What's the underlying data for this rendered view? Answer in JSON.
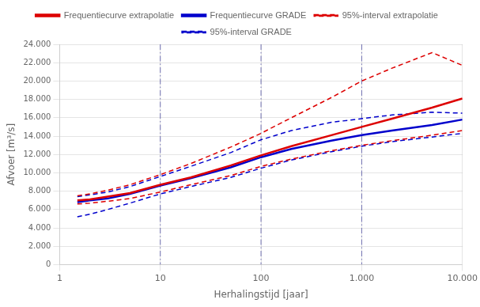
{
  "chart_data": {
    "type": "line",
    "xlabel": "Herhalingstijd [jaar]",
    "ylabel": "Afvoer [m³/s]",
    "log": "x",
    "grid": true,
    "legend": "top",
    "xlim": [
      1,
      10000
    ],
    "xticks": [
      1,
      10,
      100,
      {
        "value": 1000,
        "label": "1.000"
      },
      {
        "value": 10000,
        "label": "10.000"
      }
    ],
    "ylim": [
      0,
      24000
    ],
    "yticks": [
      0,
      {
        "value": 2000,
        "label": "2.000"
      },
      {
        "value": 4000,
        "label": "4.000"
      },
      {
        "value": 6000,
        "label": "6.000"
      },
      {
        "value": 8000,
        "label": "8.000"
      },
      {
        "value": 10000,
        "label": "10.000"
      },
      {
        "value": 12000,
        "label": "12.000"
      },
      {
        "value": 14000,
        "label": "14.000"
      },
      {
        "value": 16000,
        "label": "16.000"
      },
      {
        "value": 18000,
        "label": "18.000"
      },
      {
        "value": 20000,
        "label": "20.000"
      },
      {
        "value": 22000,
        "label": "22.000"
      },
      {
        "value": 24000,
        "label": "24.000"
      }
    ],
    "x": [
      1.5,
      2,
      3,
      5,
      10,
      20,
      50,
      100,
      200,
      500,
      1000,
      2000,
      5000,
      10000
    ],
    "series": [
      {
        "name": "Frequentiecurve extrapolatie",
        "color": "#dd0000",
        "line_style": "solid",
        "values": [
          7000,
          7100,
          7400,
          7800,
          8700,
          9500,
          10800,
          11900,
          12900,
          14100,
          15000,
          15900,
          17100,
          18100
        ]
      },
      {
        "name": "Frequentiecurve GRADE",
        "color": "#0000cc",
        "line_style": "solid",
        "values": [
          6800,
          7000,
          7200,
          7700,
          8600,
          9400,
          10600,
          11700,
          12600,
          13500,
          14100,
          14600,
          15200,
          15800
        ]
      },
      {
        "name": "95%-interval extrapolatie",
        "color": "#dd0000",
        "line_style": "dashed",
        "values": [
          7500,
          7700,
          8100,
          8700,
          9800,
          11000,
          12800,
          14300,
          16000,
          18200,
          20000,
          21400,
          23100,
          21700
        ]
      },
      {
        "name": "95%-interval extrapolatie",
        "color": "#dd0000",
        "line_style": "dashed",
        "values": [
          6600,
          6700,
          6900,
          7200,
          7900,
          8700,
          9700,
          10700,
          11500,
          12400,
          13000,
          13500,
          14100,
          14600
        ]
      },
      {
        "name": "95%-interval GRADE",
        "color": "#0000cc",
        "line_style": "dashed",
        "values": [
          7400,
          7600,
          7900,
          8500,
          9600,
          10700,
          12200,
          13600,
          14600,
          15500,
          15900,
          16300,
          16600,
          16500
        ]
      },
      {
        "name": "95%-interval GRADE",
        "color": "#0000cc",
        "line_style": "dashed",
        "values": [
          5200,
          5500,
          6000,
          6700,
          7700,
          8500,
          9500,
          10500,
          11400,
          12300,
          12900,
          13400,
          13900,
          14300
        ]
      }
    ],
    "vlines": {
      "values": [
        10,
        100,
        1000
      ],
      "color": "#7070b0",
      "line_style": "dashdot"
    }
  }
}
